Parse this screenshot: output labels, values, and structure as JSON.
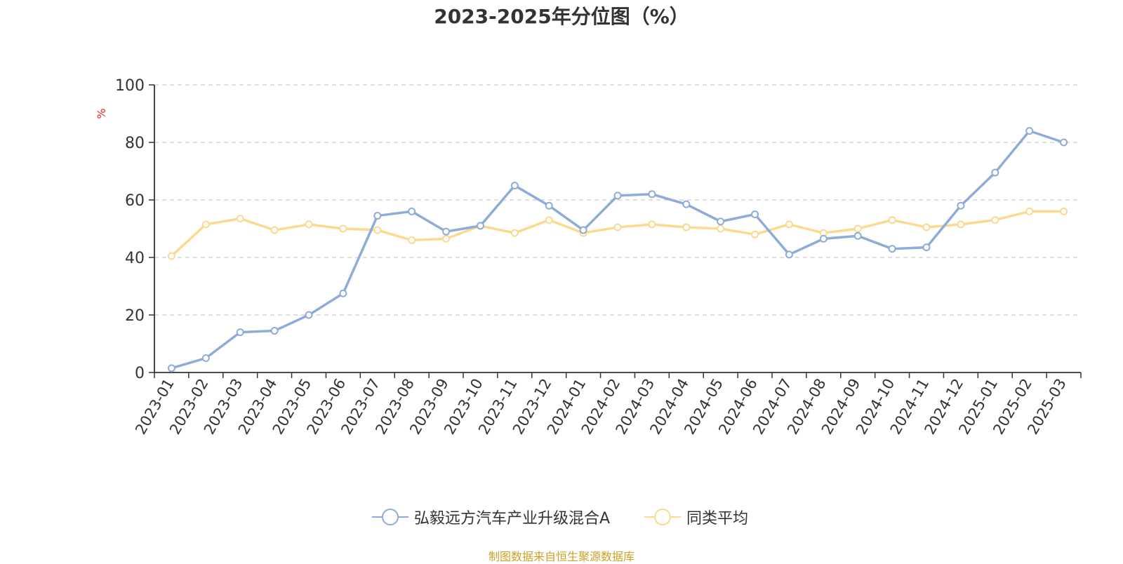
{
  "chart_data": {
    "type": "line",
    "title": "2023-2025年分位图（%）",
    "ylabel": "%",
    "ylim": [
      0,
      100
    ],
    "yticks": [
      0,
      20,
      40,
      60,
      80,
      100
    ],
    "grid": "horizontal dashed",
    "legend_position": "bottom",
    "categories": [
      "2023-01",
      "2023-02",
      "2023-03",
      "2023-04",
      "2023-05",
      "2023-06",
      "2023-07",
      "2023-08",
      "2023-09",
      "2023-10",
      "2023-11",
      "2023-12",
      "2024-01",
      "2024-02",
      "2024-03",
      "2024-04",
      "2024-05",
      "2024-06",
      "2024-07",
      "2024-08",
      "2024-09",
      "2024-10",
      "2024-11",
      "2024-12",
      "2025-01",
      "2025-02",
      "2025-03"
    ],
    "series": [
      {
        "name": "弘毅远方汽车产业升级混合A",
        "color": "#8eacd8",
        "values": [
          1.5,
          5,
          14,
          14.5,
          20,
          27.5,
          54.5,
          56,
          49,
          51,
          65,
          58,
          49.5,
          61.5,
          62,
          58.5,
          52.5,
          55,
          41,
          46.5,
          47.5,
          43,
          43.5,
          58,
          69.5,
          84,
          80
        ]
      },
      {
        "name": "同类平均",
        "color": "#fcd98f",
        "values": [
          40.5,
          51.5,
          53.5,
          49.5,
          51.5,
          50,
          49.5,
          46,
          46.5,
          51,
          48.5,
          53,
          48.5,
          50.5,
          51.5,
          50.5,
          50,
          48,
          51.5,
          48.5,
          50,
          53,
          50.5,
          51.5,
          53,
          56,
          56
        ]
      }
    ]
  },
  "source": "制图数据来自恒生聚源数据库",
  "colors": {
    "axis": "#333333",
    "grid": "#cccccc",
    "ylabel": "#e03030",
    "source": "#c9a227"
  }
}
